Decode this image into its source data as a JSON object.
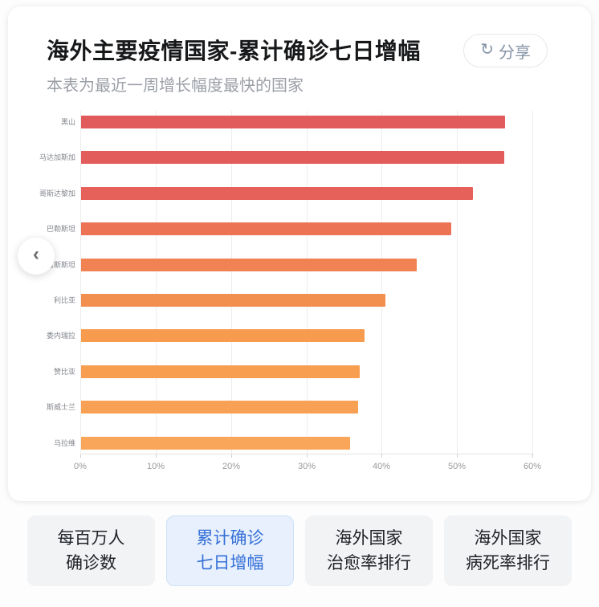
{
  "card": {
    "title": "海外主要疫情国家-累计确诊七日增幅",
    "subtitle": "本表为最近一周增长幅度最快的国家",
    "share_label": "分享",
    "share_icon": "refresh-share-icon"
  },
  "carousel": {
    "prev_icon": "chevron-left-icon",
    "prev_glyph": "‹"
  },
  "chart_data": {
    "type": "bar",
    "orientation": "horizontal",
    "title": "海外主要疫情国家-累计确诊七日增幅",
    "subtitle": "本表为最近一周增长幅度最快的国家",
    "categories": [
      "黑山",
      "马达加斯加",
      "哥斯达黎加",
      "巴勒斯坦",
      "吉尔吉斯斯坦",
      "利比亚",
      "委内瑞拉",
      "赞比亚",
      "斯威士兰",
      "马拉维"
    ],
    "values": [
      56.3,
      56.2,
      52.0,
      49.1,
      44.5,
      40.4,
      37.6,
      37.0,
      36.8,
      35.7
    ],
    "unit": "%",
    "xlabel": "",
    "ylabel": "",
    "xlim": [
      0,
      60
    ],
    "x_ticks": [
      "0%",
      "10%",
      "20%",
      "30%",
      "40%",
      "50%",
      "60%"
    ],
    "grid": true,
    "legend": false,
    "bar_colors": [
      "#e15b5c",
      "#e25c5b",
      "#e6615a",
      "#ed7355",
      "#f08253",
      "#f28f4f",
      "#f79b4e",
      "#f89e51",
      "#f8a053",
      "#f9a65a"
    ]
  },
  "tabs": [
    {
      "lines": [
        "每百万人",
        "确诊数"
      ],
      "active": false
    },
    {
      "lines": [
        "累计确诊",
        "七日增幅"
      ],
      "active": true
    },
    {
      "lines": [
        "海外国家",
        "治愈率排行"
      ],
      "active": false
    },
    {
      "lines": [
        "海外国家",
        "病死率排行"
      ],
      "active": false
    }
  ],
  "colors": {
    "card_bg": "#ffffff",
    "title_text": "#17181a",
    "subtitle_text": "#9b9fa6",
    "share_text": "#8593a6",
    "gridline": "#ececec",
    "axis_label": "#9a9a9a",
    "active_tab_bg": "#e7f0fc",
    "active_tab_text": "#3570d8",
    "inactive_tab_bg": "#f2f3f5"
  }
}
